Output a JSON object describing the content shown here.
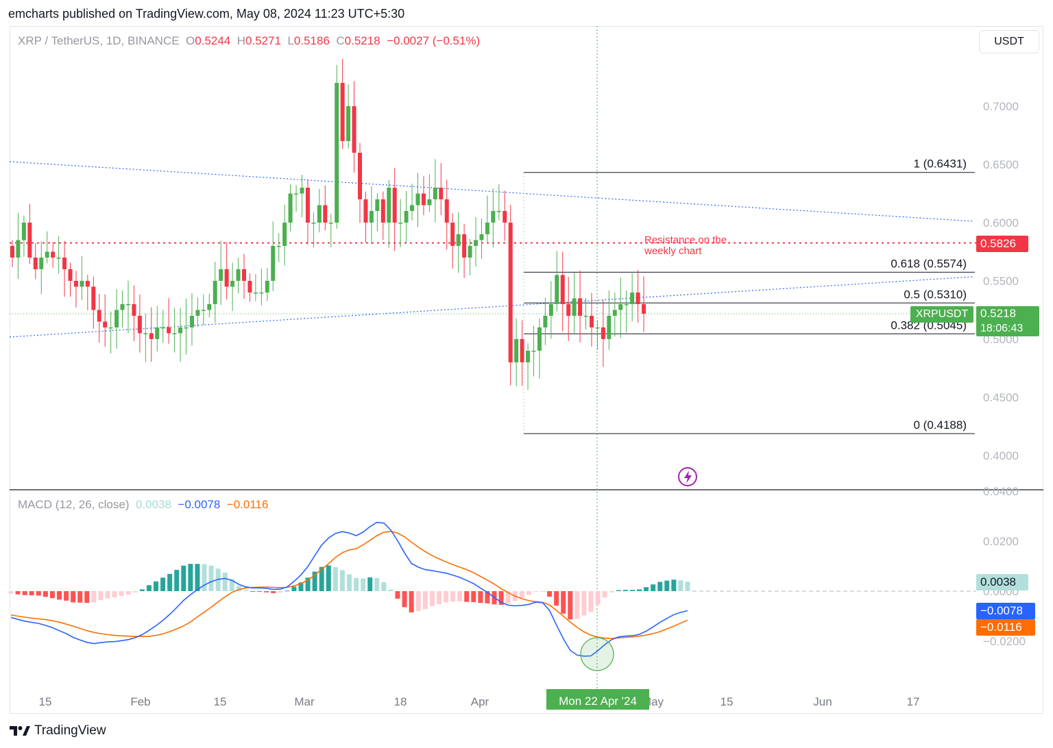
{
  "header": {
    "published": "emcharts published on TradingView.com, May 08, 2024 11:23 UTC+5:30"
  },
  "legend": {
    "symbol": "XRP / TetherUS, 1D, BINANCE",
    "o_label": "O",
    "o": "0.5244",
    "h_label": "H",
    "h": "0.5271",
    "l_label": "L",
    "l": "0.5186",
    "c_label": "C",
    "c": "0.5218",
    "change": "−0.0027 (−0.51%)"
  },
  "currency_button": "USDT",
  "macd_legend": {
    "label": "MACD (12, 26, close)",
    "hist": "0.0038",
    "macd": "−0.0078",
    "signal": "−0.0116"
  },
  "badges": {
    "resistance": "0.5826",
    "symbol": "XRPUSDT",
    "price": "0.5218",
    "countdown": "18:06:43",
    "macd_hist": "0.0038",
    "macd_line": "−0.0078",
    "signal_line": "−0.0116"
  },
  "annotation": "Resistance on the\nweekly chart",
  "crosshair_date": "Mon 22 Apr '24",
  "branding": "TradingView",
  "colors": {
    "up": "#089981",
    "up_candle": "#4caf50",
    "down": "#f23645",
    "macd": "#2962ff",
    "signal": "#ff6d00",
    "resistance": "#f23645",
    "trend": "#2962ff"
  },
  "chart_data": [
    {
      "type": "candlestick",
      "symbol": "XRP / TetherUS",
      "interval": "1D",
      "ylim": [
        0.37,
        0.76
      ],
      "y_ticks": [
        "0.4000",
        "0.4500",
        "0.5000",
        "0.5500",
        "0.6000",
        "0.6500",
        "0.7000"
      ],
      "x_ticks": [
        "15",
        "Feb",
        "15",
        "Mar",
        "18",
        "Apr",
        "May",
        "15",
        "Jun",
        "17"
      ],
      "last_price": 0.5218,
      "resistance": {
        "value": 0.5826,
        "label": "Resistance on the\nweekly chart"
      },
      "fibonacci": [
        {
          "label": "1 (0.6431)",
          "value": 0.6431
        },
        {
          "label": "0.618 (0.5574)",
          "value": 0.5574
        },
        {
          "label": "0.5 (0.5310)",
          "value": 0.531
        },
        {
          "label": "0.382 (0.5045)",
          "value": 0.5045
        },
        {
          "label": "0 (0.4188)",
          "value": 0.4188
        }
      ],
      "closes": [
        0.57,
        0.585,
        0.6,
        0.57,
        0.56,
        0.57,
        0.575,
        0.57,
        0.57,
        0.56,
        0.55,
        0.545,
        0.55,
        0.545,
        0.525,
        0.515,
        0.51,
        0.51,
        0.525,
        0.53,
        0.53,
        0.52,
        0.505,
        0.505,
        0.5,
        0.51,
        0.51,
        0.505,
        0.505,
        0.51,
        0.51,
        0.52,
        0.525,
        0.525,
        0.53,
        0.55,
        0.56,
        0.545,
        0.55,
        0.56,
        0.55,
        0.54,
        0.54,
        0.54,
        0.55,
        0.58,
        0.58,
        0.6,
        0.625,
        0.625,
        0.63,
        0.6,
        0.6,
        0.615,
        0.6,
        0.6,
        0.72,
        0.67,
        0.7,
        0.66,
        0.62,
        0.6,
        0.61,
        0.62,
        0.6,
        0.63,
        0.6,
        0.6,
        0.61,
        0.615,
        0.625,
        0.615,
        0.62,
        0.63,
        0.62,
        0.6,
        0.58,
        0.59,
        0.57,
        0.58,
        0.585,
        0.59,
        0.6,
        0.61,
        0.61,
        0.6,
        0.48,
        0.5,
        0.48,
        0.49,
        0.49,
        0.51,
        0.52,
        0.53,
        0.555,
        0.53,
        0.52,
        0.535,
        0.52,
        0.52,
        0.51,
        0.51,
        0.5,
        0.52,
        0.525,
        0.53,
        0.53,
        0.54,
        0.53,
        0.5218
      ],
      "macd": [
        -0.0105,
        -0.0113,
        -0.012,
        -0.0125,
        -0.0129,
        -0.0137,
        -0.0146,
        -0.0158,
        -0.017,
        -0.0185,
        -0.0195,
        -0.0205,
        -0.021,
        -0.0206,
        -0.0203,
        -0.0202,
        -0.0198,
        -0.0194,
        -0.0186,
        -0.0174,
        -0.0157,
        -0.0138,
        -0.0117,
        -0.0093,
        -0.0066,
        -0.0037,
        -0.0014,
        0.0006,
        0.0024,
        0.0038,
        0.0047,
        0.0051,
        0.0043,
        0.0027,
        0.0017,
        0.0013,
        0.0013,
        0.0011,
        0.0007,
        0.0008,
        0.0017,
        0.0039,
        0.0065,
        0.0098,
        0.0142,
        0.0184,
        0.0213,
        0.0231,
        0.0238,
        0.0232,
        0.0222,
        0.0236,
        0.0258,
        0.0275,
        0.0272,
        0.0245,
        0.0202,
        0.0153,
        0.0111,
        0.0096,
        0.0086,
        0.0082,
        0.0077,
        0.0072,
        0.0064,
        0.0055,
        0.0043,
        0.003,
        0.0012,
        -0.0005,
        -0.0025,
        -0.0045,
        -0.0056,
        -0.0059,
        -0.0057,
        -0.0053,
        -0.0044,
        -0.0046,
        -0.0077,
        -0.0135,
        -0.019,
        -0.0237,
        -0.0256,
        -0.026,
        -0.0259,
        -0.0238,
        -0.0214,
        -0.0194,
        -0.0183,
        -0.018,
        -0.0178,
        -0.0173,
        -0.016,
        -0.0143,
        -0.0125,
        -0.0109,
        -0.0094,
        -0.0085,
        -0.0078
      ],
      "signal": [
        -0.0095,
        -0.01,
        -0.0104,
        -0.0108,
        -0.0111,
        -0.0114,
        -0.0118,
        -0.0124,
        -0.0132,
        -0.014,
        -0.0149,
        -0.0158,
        -0.0165,
        -0.017,
        -0.0174,
        -0.0177,
        -0.0179,
        -0.018,
        -0.0181,
        -0.0181,
        -0.0181,
        -0.0177,
        -0.0171,
        -0.0162,
        -0.0151,
        -0.0139,
        -0.0123,
        -0.0103,
        -0.0084,
        -0.0064,
        -0.0043,
        -0.0023,
        -0.0005,
        0.0006,
        0.0013,
        0.0015,
        0.0016,
        0.0016,
        0.0015,
        0.0014,
        0.0015,
        0.0021,
        0.003,
        0.0044,
        0.0064,
        0.0087,
        0.011,
        0.0135,
        0.0154,
        0.0165,
        0.017,
        0.0185,
        0.0203,
        0.0222,
        0.0236,
        0.0239,
        0.0232,
        0.0217,
        0.0196,
        0.0176,
        0.0158,
        0.0142,
        0.0129,
        0.0117,
        0.0106,
        0.0096,
        0.0086,
        0.0074,
        0.0059,
        0.0044,
        0.0028,
        0.001,
        -0.0006,
        -0.002,
        -0.003,
        -0.0038,
        -0.0042,
        -0.0045,
        -0.0055,
        -0.0077,
        -0.01,
        -0.0124,
        -0.0145,
        -0.0163,
        -0.0176,
        -0.0184,
        -0.0188,
        -0.0189,
        -0.0187,
        -0.0185,
        -0.0183,
        -0.018,
        -0.0176,
        -0.017,
        -0.0162,
        -0.0151,
        -0.014,
        -0.0128,
        -0.0116
      ],
      "macd_ylim": [
        -0.033,
        0.034
      ],
      "macd_ticks": [
        "0.0400",
        "0.0200",
        "0.0000",
        "−0.0200"
      ]
    }
  ]
}
